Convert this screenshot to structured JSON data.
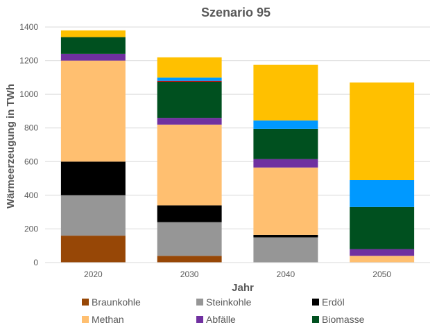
{
  "chart_data": {
    "type": "bar",
    "stacked": true,
    "title": "Szenario 95",
    "xlabel": "Jahr",
    "ylabel": "Wärmeerzeugung in TWh",
    "categories": [
      "2020",
      "2030",
      "2040",
      "2050"
    ],
    "ylim": [
      0,
      1400
    ],
    "yticks": [
      0,
      200,
      400,
      600,
      800,
      1000,
      1200,
      1400
    ],
    "grid": true,
    "legend": "bottom",
    "series": [
      {
        "name": "Braunkohle",
        "color": "#974706",
        "values": [
          160,
          40,
          0,
          0
        ]
      },
      {
        "name": "Steinkohle",
        "color": "#969696",
        "values": [
          240,
          200,
          150,
          0
        ]
      },
      {
        "name": "Erdöl",
        "color": "#000000",
        "values": [
          200,
          100,
          15,
          0
        ]
      },
      {
        "name": "Methan",
        "color": "#FFBF70",
        "values": [
          600,
          480,
          400,
          40
        ]
      },
      {
        "name": "Abfälle",
        "color": "#7030A0",
        "values": [
          40,
          40,
          50,
          40
        ]
      },
      {
        "name": "Biomasse",
        "color": "#00501F",
        "values": [
          100,
          215,
          180,
          250
        ]
      },
      {
        "name": "",
        "color": "#C00000",
        "values": [
          0,
          5,
          0,
          0
        ]
      },
      {
        "name": "",
        "color": "#0099FF",
        "values": [
          0,
          20,
          50,
          160
        ]
      },
      {
        "name": "",
        "color": "#FFC000",
        "values": [
          40,
          120,
          330,
          580
        ]
      }
    ]
  }
}
